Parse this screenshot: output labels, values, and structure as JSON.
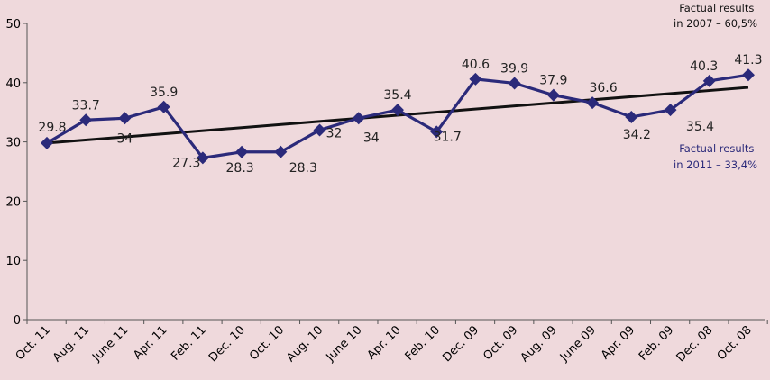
{
  "chart_data": {
    "type": "line",
    "categories": [
      "Oct. 11",
      "Aug. 11",
      "June 11",
      "Apr. 11",
      "Feb. 11",
      "Dec. 10",
      "Oct. 10",
      "Aug. 10",
      "June 10",
      "Apr. 10",
      "Feb. 10",
      "Dec. 09",
      "Oct. 09",
      "Aug. 09",
      "June 09",
      "Apr. 09",
      "Feb. 09",
      "Dec. 08",
      "Oct. 08"
    ],
    "series": [
      {
        "values": [
          29.8,
          33.7,
          34,
          35.9,
          27.3,
          28.3,
          28.3,
          32,
          34,
          35.4,
          31.7,
          40.6,
          39.9,
          37.9,
          36.6,
          34.2,
          35.4,
          40.3,
          41.3
        ],
        "labels": [
          "29.8",
          "33.7",
          "34",
          "35.9",
          "27.3",
          "28.3",
          "28.3",
          "32",
          "34",
          "35.4",
          "31.7",
          "40.6",
          "39.9",
          "37.9",
          "36.6",
          "34.2",
          "35.4",
          "40.3",
          "41.3"
        ],
        "color": "#2b2a7a"
      }
    ],
    "trendline": {
      "start": 29.8,
      "end": 39.2,
      "color": "#111111"
    },
    "ylim": [
      0,
      50
    ],
    "yticks": [
      0,
      10,
      20,
      30,
      40,
      50
    ],
    "grid": false,
    "annotations": [
      {
        "lines": [
          "Factual results",
          "in 2007 – 60,5%"
        ],
        "color": "#111111"
      },
      {
        "lines": [
          "Factual results",
          "in 2011 – 33,4%"
        ],
        "color": "#2b2a7a"
      }
    ]
  }
}
